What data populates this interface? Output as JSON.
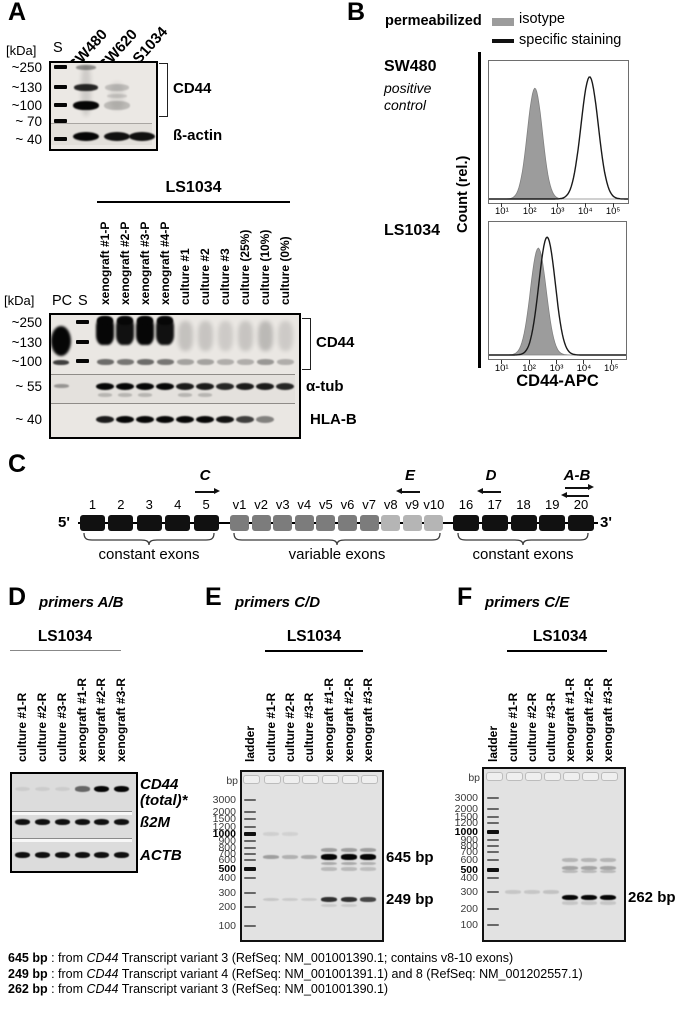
{
  "panelA": {
    "label": "A",
    "blot1": {
      "kda_header": "[kDa]",
      "markers": [
        "~250",
        "~130",
        "~100",
        "~  70",
        "~  40"
      ],
      "std_lane": "S",
      "lanes": [
        "SW480",
        "SW620",
        "LS1034"
      ],
      "targets": [
        "CD44",
        "ß-actin"
      ],
      "cd44_bands": [
        [
          0,
          250,
          0.4
        ],
        [
          0,
          130,
          0.85
        ],
        [
          0,
          100,
          1
        ],
        [
          1,
          130,
          0.18
        ],
        [
          1,
          112,
          0.13
        ],
        [
          1,
          100,
          0.2
        ]
      ],
      "actin_intensities": [
        1,
        0.95,
        0.95
      ]
    },
    "blot2": {
      "header": "LS1034",
      "kda_header": "[kDa]",
      "pc_lane": "PC",
      "std_lane": "S",
      "lanes": [
        "xenograft #1-P",
        "xenograft #2-P",
        "xenograft #3-P",
        "xenograft #4-P",
        "culture #1",
        "culture #2",
        "culture #3",
        "culture (25%)",
        "culture (10%)",
        "culture (0%)"
      ],
      "markers": [
        "~250",
        "~130",
        "~100",
        "~  55",
        "~  40"
      ],
      "targets": [
        "CD44",
        "α-tub",
        "HLA-B"
      ],
      "cd44_smear": [
        1,
        0.95,
        1,
        0.95,
        0.16,
        0.15,
        0.12,
        0.15,
        0.2,
        0.12
      ],
      "cd44_100": [
        0.55,
        0.5,
        0.55,
        0.5,
        0.3,
        0.3,
        0.25,
        0.25,
        0.35,
        0.25
      ],
      "tub": [
        1,
        1,
        1,
        1,
        0.9,
        0.9,
        0.85,
        0.9,
        0.9,
        0.85
      ],
      "hla": [
        0.9,
        1,
        1,
        1,
        1,
        1,
        0.95,
        0.75,
        0.45,
        0
      ]
    }
  },
  "panelB": {
    "label": "B",
    "condition": "permeabilized",
    "legend": [
      {
        "label": "isotype"
      },
      {
        "label": "specific staining"
      }
    ],
    "ylabel": "Count (rel.)",
    "xlabel": "CD44-APC",
    "x_ticks": [
      "10¹",
      "10²",
      "10³",
      "10⁴",
      "10⁵"
    ],
    "plots": [
      {
        "sample": "SW480",
        "note_lines": [
          "positive",
          "control"
        ],
        "isotype": {
          "peak_log": 2.15,
          "sigma": 0.27
        },
        "specific": {
          "peak_log": 4.12,
          "sigma": 0.31
        }
      },
      {
        "sample": "LS1034",
        "note_lines": [],
        "isotype": {
          "peak_log": 2.3,
          "sigma": 0.29
        },
        "specific": {
          "peak_log": 2.62,
          "sigma": 0.3
        }
      }
    ]
  },
  "panelC": {
    "label": "C",
    "five_prime": "5'",
    "three_prime": "3'",
    "constant_exons_1": [
      "1",
      "2",
      "3",
      "4",
      "5"
    ],
    "variable_exons": [
      "v1",
      "v2",
      "v3",
      "v4",
      "v5",
      "v6",
      "v7",
      "v8",
      "v9",
      "v10"
    ],
    "light_variable": [
      "v8",
      "v9",
      "v10"
    ],
    "constant_exons_2": [
      "16",
      "17",
      "18",
      "19",
      "20"
    ],
    "group_labels": [
      "constant exons",
      "variable exons",
      "constant exons"
    ],
    "primers": [
      {
        "name": "C",
        "dir": "right"
      },
      {
        "name": "E",
        "dir": "left"
      },
      {
        "name": "D",
        "dir": "left"
      },
      {
        "name": "A-B",
        "dir": "both"
      }
    ]
  },
  "panelD": {
    "label": "D",
    "title": "primers A/B",
    "cell_line": "LS1034",
    "lanes": [
      "culture #1-R",
      "culture #2-R",
      "culture #3-R",
      "xenograft #1-R",
      "xenograft #2-R",
      "xenograft #3-R"
    ],
    "rows": [
      {
        "gene_lines": [
          "CD44",
          "(total)*"
        ],
        "intensities": [
          0.07,
          0.07,
          0.07,
          0.55,
          1,
          1
        ]
      },
      {
        "gene_lines": [
          "ß2M"
        ],
        "intensities": [
          0.95,
          0.95,
          0.95,
          0.95,
          0.95,
          0.95
        ]
      },
      {
        "gene_lines": [
          "ACTB"
        ],
        "intensities": [
          0.95,
          0.95,
          0.95,
          0.95,
          0.95,
          0.95
        ]
      }
    ]
  },
  "panelE": {
    "label": "E",
    "title": "primers C/D",
    "cell_line": "LS1034",
    "lanes": [
      "ladder",
      "culture #1-R",
      "culture #2-R",
      "culture #3-R",
      "xenograft #1-R",
      "xenograft #2-R",
      "xenograft #3-R"
    ],
    "bp_header": "bp",
    "ladder_bp": [
      3000,
      2000,
      1500,
      1200,
      1000,
      900,
      800,
      700,
      600,
      500,
      400,
      300,
      200,
      100
    ],
    "bold_bp": [
      1000,
      500
    ],
    "products": [
      {
        "text": "645 bp",
        "bp": 645
      },
      {
        "text": "249 bp",
        "bp": 249
      }
    ],
    "sample_bands": [
      [
        1,
        645,
        0.3
      ],
      [
        2,
        645,
        0.22
      ],
      [
        3,
        645,
        0.25
      ],
      [
        1,
        249,
        0.12
      ],
      [
        2,
        249,
        0.1
      ],
      [
        3,
        249,
        0.1
      ],
      [
        1,
        1000,
        0.08
      ],
      [
        2,
        1000,
        0.07
      ],
      [
        4,
        645,
        1
      ],
      [
        5,
        645,
        1
      ],
      [
        6,
        645,
        1
      ],
      [
        4,
        249,
        0.8
      ],
      [
        5,
        249,
        0.8
      ],
      [
        6,
        249,
        0.7
      ],
      [
        4,
        760,
        0.3
      ],
      [
        5,
        760,
        0.3
      ],
      [
        6,
        760,
        0.3
      ],
      [
        4,
        560,
        0.25
      ],
      [
        5,
        560,
        0.25
      ],
      [
        6,
        560,
        0.22
      ],
      [
        4,
        500,
        0.18
      ],
      [
        5,
        500,
        0.18
      ],
      [
        6,
        500,
        0.16
      ],
      [
        4,
        210,
        0.1
      ],
      [
        5,
        210,
        0.1
      ]
    ]
  },
  "panelF": {
    "label": "F",
    "title": "primers C/E",
    "cell_line": "LS1034",
    "lanes": [
      "ladder",
      "culture #1-R",
      "culture #2-R",
      "culture #3-R",
      "xenograft #1-R",
      "xenograft #2-R",
      "xenograft #3-R"
    ],
    "bp_header": "bp",
    "ladder_bp": [
      3000,
      2000,
      1500,
      1200,
      1000,
      900,
      800,
      700,
      600,
      500,
      400,
      300,
      200,
      100
    ],
    "bold_bp": [
      1000,
      500
    ],
    "products": [
      {
        "text": "262 bp",
        "bp": 262
      }
    ],
    "sample_bands": [
      [
        1,
        300,
        0.12
      ],
      [
        2,
        300,
        0.12
      ],
      [
        3,
        300,
        0.14
      ],
      [
        4,
        262,
        1
      ],
      [
        5,
        262,
        1
      ],
      [
        6,
        262,
        1
      ],
      [
        4,
        600,
        0.2
      ],
      [
        5,
        600,
        0.2
      ],
      [
        6,
        600,
        0.2
      ],
      [
        4,
        520,
        0.28
      ],
      [
        5,
        520,
        0.28
      ],
      [
        6,
        520,
        0.28
      ],
      [
        4,
        480,
        0.18
      ],
      [
        5,
        480,
        0.18
      ],
      [
        6,
        480,
        0.18
      ],
      [
        4,
        230,
        0.12
      ],
      [
        5,
        230,
        0.12
      ],
      [
        6,
        230,
        0.12
      ]
    ]
  },
  "footnotes": [
    {
      "size": "645 bp",
      "sep": " : from ",
      "gene": "CD44",
      "rest": " Transcript variant 3 (RefSeq: NM_001001390.1; contains v8-10 exons)"
    },
    {
      "size": "249 bp",
      "sep": " : from ",
      "gene": "CD44",
      "rest": " Transcript variant 4 (RefSeq: NM_001001391.1) and 8 (RefSeq: NM_001202557.1)"
    },
    {
      "size": "262 bp",
      "sep": " : from ",
      "gene": "CD44",
      "rest": " Transcript variant 3 (RefSeq: NM_001001390.1)"
    }
  ],
  "colors": {
    "constant_exon": "#111111",
    "variable_exon": "#7c7c7c",
    "variable_exon_light": "#b5b5b5",
    "isotype_fill": "#9c9c9c",
    "specific_line": "#1a1a1a"
  }
}
